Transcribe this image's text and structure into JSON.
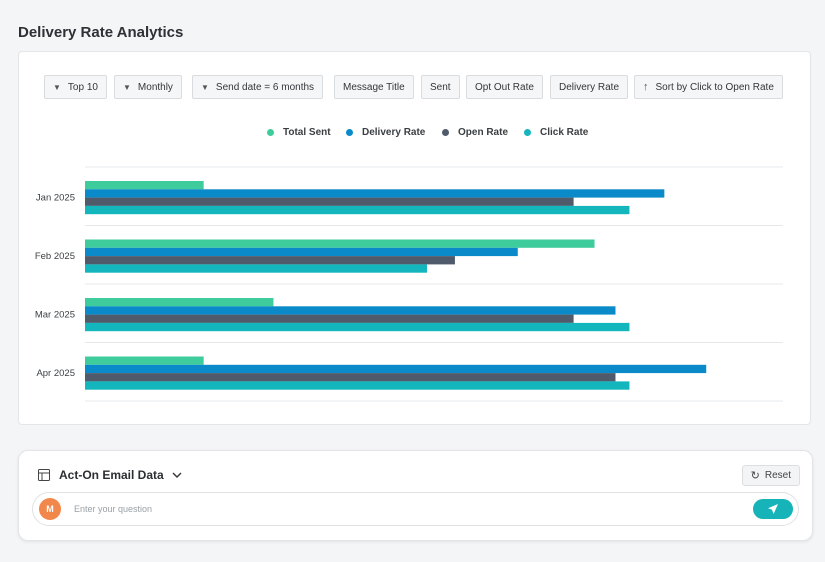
{
  "page": {
    "title": "Delivery Rate Analytics"
  },
  "toolbar": {
    "chips": [
      {
        "label": "Top 10",
        "icon": "filter-icon"
      },
      {
        "label": "Monthly",
        "icon": "filter-icon"
      },
      {
        "label": "Send date =  6 months",
        "icon": "filter-icon"
      },
      {
        "label": "Message Title",
        "icon": ""
      },
      {
        "label": "Sent",
        "icon": ""
      },
      {
        "label": "Opt Out Rate",
        "icon": ""
      },
      {
        "label": "Delivery Rate",
        "icon": ""
      },
      {
        "label": "Sort by Click to Open Rate",
        "icon": "sort-arrow-up-icon"
      }
    ]
  },
  "chart_data": {
    "type": "bar",
    "orientation": "horizontal",
    "categories": [
      "Jan 2025",
      "Feb 2025",
      "Mar 2025",
      "Apr 2025"
    ],
    "series": [
      {
        "name": "Total Sent",
        "color": "#3fcc9c",
        "values": [
          17,
          73,
          27,
          17
        ]
      },
      {
        "name": "Delivery Rate",
        "color": "#0a8ac9",
        "values": [
          83,
          62,
          76,
          89
        ]
      },
      {
        "name": "Open Rate",
        "color": "#4f5a6b",
        "values": [
          70,
          53,
          70,
          76
        ]
      },
      {
        "name": "Click Rate",
        "color": "#13b6bc",
        "values": [
          78,
          49,
          78,
          78
        ]
      }
    ],
    "xlim": [
      0,
      100
    ],
    "legend_position": "top-center",
    "grid": true,
    "title": "",
    "xlabel": "",
    "ylabel": ""
  },
  "ai_panel": {
    "data_source_label": "Act-On Email Data",
    "reset_label": "Reset",
    "avatar_initial": "M",
    "question_placeholder": "Enter your question"
  },
  "colors": {
    "accent": "#16b3b8",
    "avatar": "#f2874b"
  }
}
